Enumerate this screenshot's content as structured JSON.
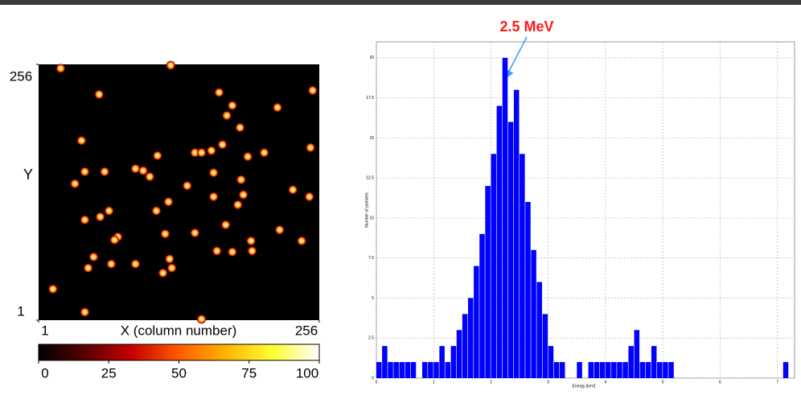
{
  "chart_data": [
    {
      "type": "heatmap",
      "xlabel": "X (column number)",
      "ylabel": "Y",
      "xlim": [
        1,
        256
      ],
      "ylim": [
        1,
        256
      ],
      "xticks": [
        1,
        256
      ],
      "yticks": [
        1,
        256
      ],
      "spots": {
        "x": [
          21,
          121,
          56,
          165,
          250,
          177,
          218,
          172,
          184,
          40,
          143,
          149,
          158,
          168,
          109,
          206,
          248,
          191,
          89,
          96,
          102,
          43,
          61,
          160,
          185,
          136,
          34,
          232,
          247,
          187,
          182,
          160,
          119,
          108,
          43,
          57,
          65,
          73,
          70,
          116,
          143,
          171,
          220,
          194,
          240,
          163,
          177,
          195,
          51,
          67,
          89,
          120,
          122,
          114,
          46,
          14,
          43,
          149
        ],
        "y": [
          252,
          255,
          226,
          228,
          230,
          215,
          213,
          205,
          193,
          180,
          168,
          168,
          170,
          176,
          165,
          168,
          173,
          164,
          152,
          150,
          144,
          149,
          149,
          148,
          141,
          135,
          137,
          131,
          124,
          126,
          116,
          124,
          119,
          110,
          101,
          104,
          110,
          84,
          81,
          87,
          88,
          96,
          91,
          80,
          80,
          70,
          69,
          70,
          64,
          57,
          57,
          62,
          53,
          48,
          53,
          32,
          9,
          2
        ]
      },
      "colorbar_lim": [
        0,
        100
      ],
      "colorbar_ticks": [
        0,
        25,
        50,
        75,
        100
      ],
      "colormap": [
        "#000000",
        "#5a0000",
        "#c80000",
        "#ff5a00",
        "#ffb400",
        "#ffff30",
        "#ffffff"
      ]
    },
    {
      "type": "histogram",
      "xlabel": "Energy [keV]",
      "ylabel": "Number of particles",
      "annotation": "2.5 MeV",
      "color": "#0000ff",
      "grid": true,
      "bins": [
        0,
        0.1,
        0.2,
        0.3,
        0.4,
        0.5,
        0.6,
        0.7,
        0.8,
        0.9,
        1,
        1.1,
        1.2,
        1.3,
        1.4,
        1.5,
        1.6,
        1.7,
        1.8,
        1.9,
        2,
        2.1,
        2.2,
        2.3,
        2.4,
        2.5,
        2.6,
        2.7,
        2.8,
        2.9,
        3,
        3.1,
        3.2,
        3.3,
        3.4,
        3.5,
        3.6,
        3.7,
        3.8,
        3.9,
        4,
        4.1,
        4.2,
        4.3,
        4.4,
        4.5,
        4.6,
        4.7,
        4.8,
        4.9,
        5,
        5.1,
        5.2,
        5.3,
        5.4,
        5.5,
        5.6,
        5.7,
        5.8,
        5.9,
        6,
        6.1,
        6.2,
        6.3,
        6.4,
        6.5,
        6.6,
        6.7,
        6.8,
        6.9,
        7,
        7.1,
        7.2
      ],
      "values": [
        1,
        2,
        1,
        1,
        1,
        1,
        1,
        0,
        1,
        1,
        1,
        2,
        1,
        2,
        3,
        4,
        5,
        7,
        9,
        12,
        14,
        17,
        20,
        16,
        18,
        14,
        11,
        8,
        6,
        4,
        2,
        1,
        1,
        0,
        0,
        1,
        0,
        1,
        1,
        1,
        1,
        1,
        1,
        1,
        2,
        3,
        1,
        1,
        2,
        1,
        1,
        1,
        0,
        0,
        0,
        0,
        0,
        0,
        0,
        0,
        0,
        0,
        0,
        0,
        0,
        0,
        0,
        0,
        0,
        0,
        0,
        1
      ],
      "xlim": [
        0,
        7.3
      ],
      "ylim": [
        0,
        21
      ],
      "xticks": [
        0,
        1,
        2,
        3,
        4,
        5,
        6,
        7
      ],
      "yticks": [
        0,
        2.5,
        5,
        7.5,
        10,
        12.5,
        15,
        17.5,
        20
      ]
    }
  ]
}
